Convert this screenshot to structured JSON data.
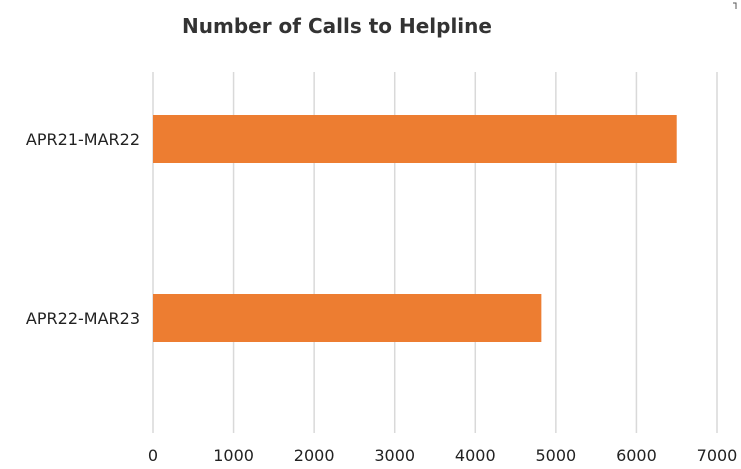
{
  "chart_data": {
    "type": "bar",
    "orientation": "horizontal",
    "title": "Number of Calls to Helpline",
    "xlabel": "",
    "ylabel": "",
    "categories": [
      "APR21-MAR22",
      "APR22-MAR23"
    ],
    "series": [
      {
        "values": [
          6500,
          4820
        ],
        "color": "#ED7D31"
      }
    ],
    "xlim": [
      0,
      7000
    ],
    "x_ticks": [
      0,
      1000,
      2000,
      3000,
      4000,
      5000,
      6000,
      7000
    ],
    "grid": "vertical",
    "legend": "none"
  }
}
